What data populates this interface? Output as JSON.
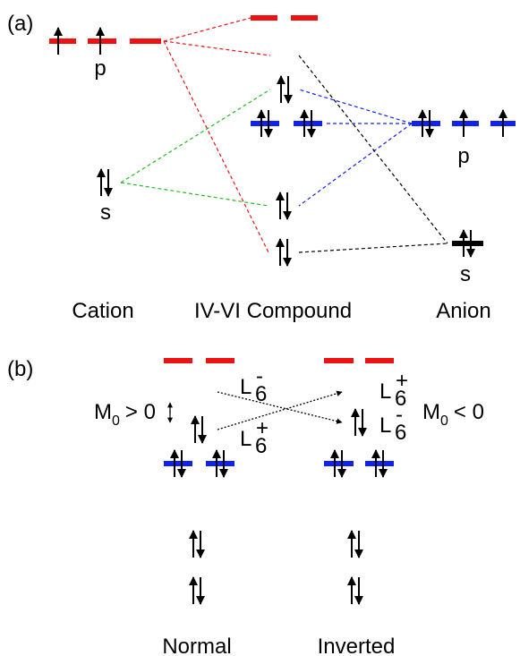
{
  "panel_a": {
    "label": "(a)",
    "cation": {
      "p_label": "p",
      "s_label": "s",
      "name": "Cation"
    },
    "compound": {
      "name": "IV-VI Compound"
    },
    "anion": {
      "p_label": "p",
      "s_label": "s",
      "name": "Anion"
    }
  },
  "panel_b": {
    "label": "(b)",
    "normal": {
      "name": "Normal",
      "gap": {
        "symbol": "M",
        "sub": "0",
        "relation": "> 0"
      },
      "upper_state": {
        "symbol": "L",
        "sub": "6",
        "sup": "-"
      },
      "lower_state": {
        "symbol": "L",
        "sub": "6",
        "sup": "+"
      }
    },
    "inverted": {
      "name": "Inverted",
      "gap": {
        "symbol": "M",
        "sub": "0",
        "relation": "< 0"
      },
      "upper_state": {
        "symbol": "L",
        "sub": "6",
        "sup": "+"
      },
      "lower_state": {
        "symbol": "L",
        "sub": "6",
        "sup": "-"
      }
    }
  }
}
